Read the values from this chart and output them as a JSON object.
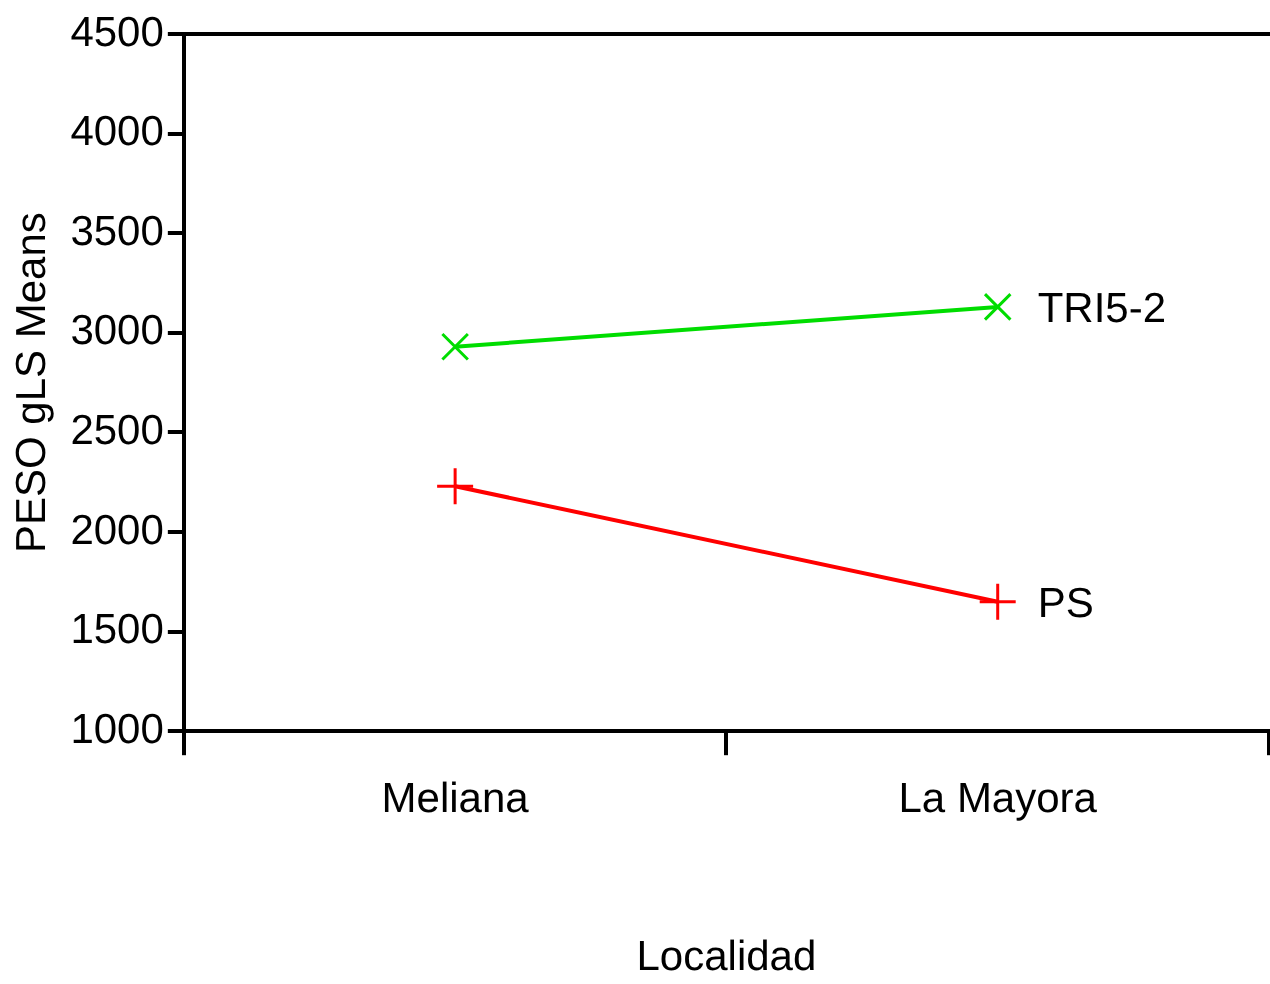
{
  "chart_data": {
    "type": "line",
    "xlabel": "Localidad",
    "ylabel": "PESO gLS Means",
    "categories": [
      "Meliana",
      "La Mayora"
    ],
    "series": [
      {
        "name": "TRI5-2",
        "color": "#00dd00",
        "values": [
          2930,
          3130
        ]
      },
      {
        "name": "PS",
        "color": "#ff0000",
        "values": [
          2230,
          1650
        ]
      }
    ],
    "ylim": [
      1000,
      4500
    ],
    "yticks": [
      1000,
      1500,
      2000,
      2500,
      3000,
      3500,
      4000,
      4500
    ],
    "grid": false,
    "legend": false,
    "marker": "cross",
    "line_style": "solid"
  }
}
